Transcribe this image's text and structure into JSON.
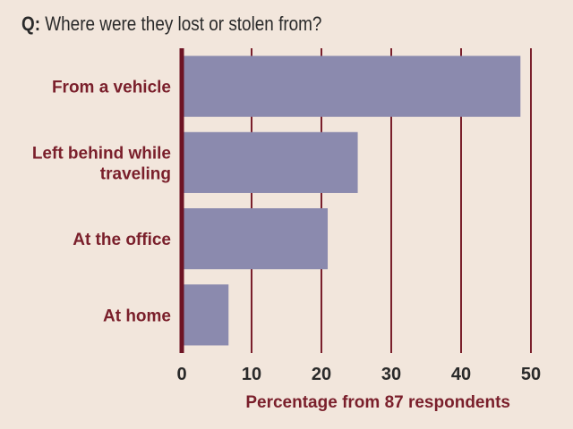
{
  "question": {
    "prefix": "Q:",
    "text": "Where were they lost or stolen from?"
  },
  "colors": {
    "background": "#f2e6dc",
    "bar": "#8b8aae",
    "gridline": "#7a1f2b",
    "axis": "#6e1424",
    "label": "#7a1f2b"
  },
  "chart_data": {
    "type": "bar",
    "orientation": "horizontal",
    "categories": [
      [
        "From a vehicle"
      ],
      [
        "Left behind while",
        "traveling"
      ],
      [
        "At the office"
      ],
      [
        "At home"
      ]
    ],
    "values": [
      48.5,
      25.2,
      20.9,
      6.7
    ],
    "xlim": [
      0,
      50
    ],
    "xticks": [
      0,
      10,
      20,
      30,
      40,
      50
    ],
    "xlabel": "Percentage from 87 respondents",
    "ylabel": "",
    "grid": true
  }
}
